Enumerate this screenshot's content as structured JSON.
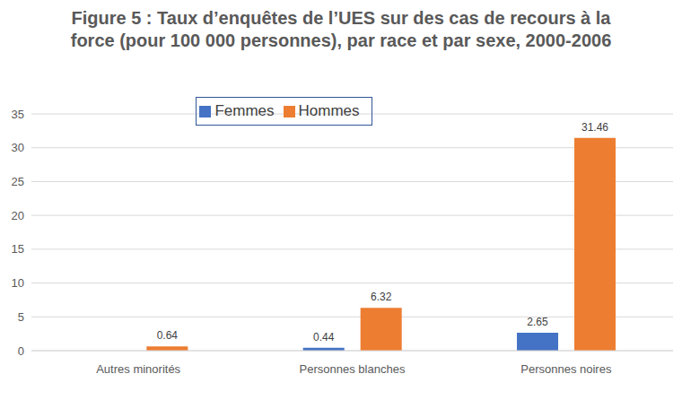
{
  "chart_data": {
    "type": "bar",
    "title": "Figure 5 : Taux d’enquêtes de l’UES sur des cas de recours à la force (pour 100 000 personnes), par race et par sexe, 2000-2006",
    "categories": [
      "Autres minorités",
      "Personnes blanches",
      "Personnes noires"
    ],
    "series": [
      {
        "name": "Femmes",
        "color": "#4472c4",
        "values": [
          0,
          0.44,
          2.65
        ]
      },
      {
        "name": "Hommes",
        "color": "#ed7d31",
        "values": [
          0.64,
          6.32,
          31.46
        ]
      }
    ],
    "ylim": [
      0,
      35
    ],
    "yticks": [
      0,
      5,
      10,
      15,
      20,
      25,
      30,
      35
    ],
    "grid": true,
    "legend": "top",
    "data_labels": true
  }
}
